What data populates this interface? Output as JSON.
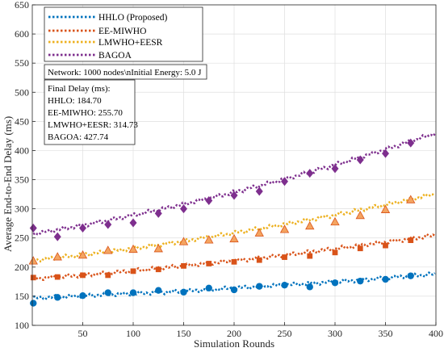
{
  "chart_data": {
    "type": "line",
    "title": "",
    "xlabel": "Simulation Rounds",
    "ylabel": "Average End-to-End Delay (ms)",
    "xlim": [
      0,
      400
    ],
    "ylim": [
      100,
      650
    ],
    "xticks": [
      50,
      100,
      150,
      200,
      250,
      300,
      350,
      400
    ],
    "yticks": [
      100,
      150,
      200,
      250,
      300,
      350,
      400,
      450,
      500,
      550,
      600,
      650
    ],
    "grid": true,
    "legend_position": "top-left",
    "series": [
      {
        "name": "HHLO (Proposed)",
        "color": "#0072BD",
        "marker": "circle",
        "x": [
          1,
          25,
          50,
          75,
          100,
          125,
          150,
          175,
          200,
          225,
          250,
          275,
          300,
          325,
          350,
          375
        ],
        "y": [
          138,
          148,
          151,
          156,
          156,
          160,
          157,
          164,
          161,
          167,
          169,
          166,
          173,
          176,
          179,
          185
        ],
        "trend_start": 147,
        "trend_end": 188,
        "final": 184.7
      },
      {
        "name": "EE-MIWHO",
        "color": "#D95319",
        "marker": "square",
        "x": [
          1,
          25,
          50,
          75,
          100,
          125,
          150,
          175,
          200,
          225,
          250,
          275,
          300,
          325,
          350,
          375
        ],
        "y": [
          182,
          183,
          186,
          186,
          193,
          196,
          202,
          206,
          209,
          212,
          217,
          219,
          225,
          232,
          237,
          246
        ],
        "trend_start": 180,
        "trend_end": 255,
        "final": 255.7
      },
      {
        "name": "LMWHO+EESR",
        "color": "#EDB120",
        "marker": "triangle",
        "x": [
          1,
          25,
          50,
          75,
          100,
          125,
          150,
          175,
          200,
          225,
          250,
          275,
          300,
          325,
          350,
          375
        ],
        "y": [
          210,
          217,
          220,
          228,
          230,
          231,
          243,
          246,
          248,
          258,
          264,
          270,
          277,
          288,
          298,
          315
        ],
        "trend_start": 211,
        "trend_end": 326,
        "final": 314.73
      },
      {
        "name": "BAGOA",
        "color": "#7E2F8E",
        "marker": "diamond",
        "x": [
          1,
          25,
          50,
          75,
          100,
          125,
          150,
          175,
          200,
          225,
          250,
          275,
          300,
          325,
          350,
          375
        ],
        "y": [
          267,
          252,
          267,
          273,
          276,
          292,
          300,
          314,
          323,
          330,
          347,
          361,
          369,
          384,
          395,
          413
        ],
        "trend_start": 257,
        "trend_end": 430,
        "final": 427.74
      }
    ],
    "annotations": {
      "network": "Network: 1000 nodes\\nInitial Energy: 5.0 J",
      "final_title": "Final Delay (ms):",
      "final_lines": [
        "HHLO: 184.70",
        "EE-MIWHO: 255.70",
        "LMWHO+EESR: 314.73",
        "BAGOA: 427.74"
      ]
    }
  }
}
